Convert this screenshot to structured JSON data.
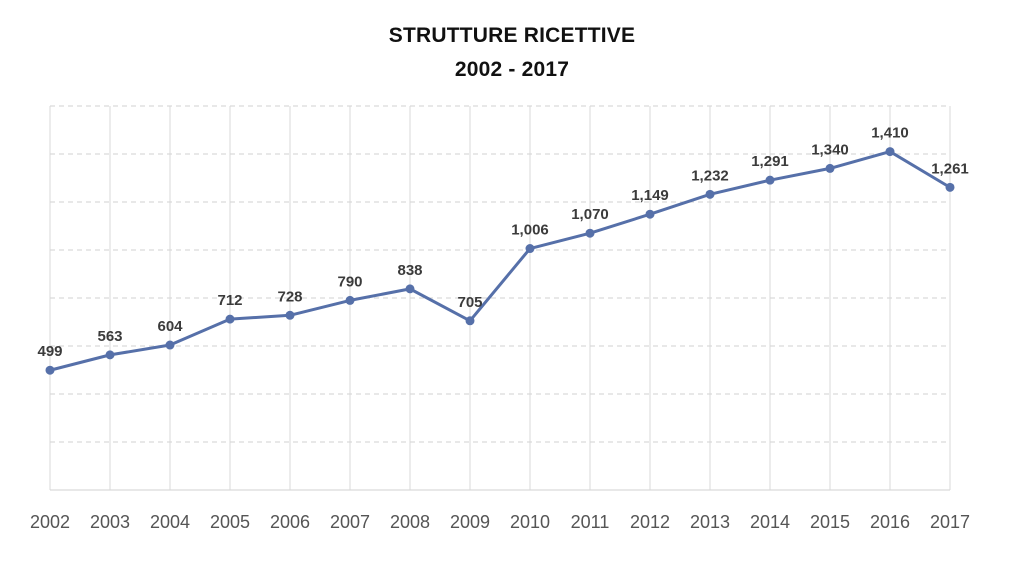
{
  "chart_data": {
    "type": "line",
    "title": "STRUTTURE RICETTIVE",
    "subtitle": "2002 - 2017",
    "xlabel": "",
    "ylabel": "",
    "categories": [
      "2002",
      "2003",
      "2004",
      "2005",
      "2006",
      "2007",
      "2008",
      "2009",
      "2010",
      "2011",
      "2012",
      "2013",
      "2014",
      "2015",
      "2016",
      "2017"
    ],
    "series": [
      {
        "values": [
          499,
          563,
          604,
          712,
          728,
          790,
          838,
          705,
          1006,
          1070,
          1149,
          1232,
          1291,
          1340,
          1410,
          1261
        ],
        "data_labels": [
          "499",
          "563",
          "604",
          "712",
          "728",
          "790",
          "838",
          "705",
          "1,006",
          "1,070",
          "1,149",
          "1,232",
          "1,291",
          "1,340",
          "1,410",
          "1,261"
        ],
        "color": "#5670a9"
      }
    ],
    "ylim": [
      0,
      1600
    ],
    "y_ticks_shown": false,
    "grid": true,
    "legend": "none"
  }
}
